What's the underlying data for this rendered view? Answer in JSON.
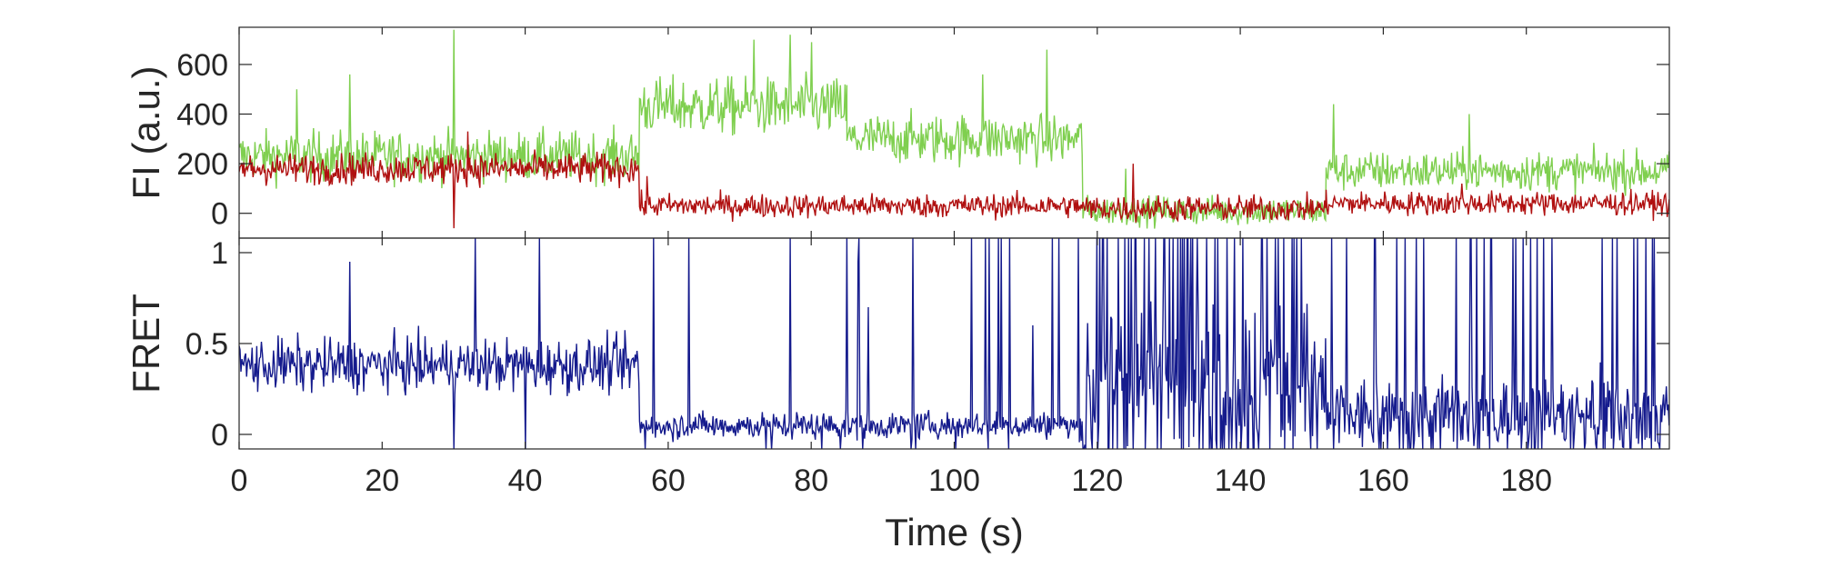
{
  "chart_data": [
    {
      "id": "fluorescence",
      "type": "line",
      "ylabel": "FI (a.u.)",
      "xlim": [
        0,
        200
      ],
      "ylim": [
        -100,
        750
      ],
      "yticks": [
        0,
        200,
        400,
        600
      ],
      "grid": false,
      "series": [
        {
          "color": "#7fcf4f",
          "segments": [
            {
              "x0": 0,
              "x1": 56,
              "mean": 230,
              "noise": 95,
              "spikes": [
                [
                  30,
                  740
                ],
                [
                  15.5,
                  560
                ],
                [
                  8,
                  500
                ]
              ]
            },
            {
              "x0": 56,
              "x1": 85,
              "mean": 430,
              "noise": 110,
              "spikes": [
                [
                  77,
                  720
                ],
                [
                  72,
                  700
                ],
                [
                  80,
                  690
                ]
              ]
            },
            {
              "x0": 85,
              "x1": 118,
              "mean": 300,
              "noise": 95,
              "spikes": [
                [
                  113,
                  660
                ],
                [
                  104,
                  560
                ]
              ]
            },
            {
              "x0": 118,
              "x1": 152,
              "mean": 10,
              "noise": 55,
              "spikes": [
                [
                  124,
                  180
                ]
              ]
            },
            {
              "x0": 152,
              "x1": 200,
              "mean": 170,
              "noise": 75,
              "spikes": [
                [
                  153,
                  440
                ],
                [
                  172,
                  400
                ]
              ]
            }
          ]
        },
        {
          "color": "#b01010",
          "segments": [
            {
              "x0": 0,
              "x1": 56,
              "mean": 180,
              "noise": 60,
              "spikes": [
                [
                  30,
                  -60
                ],
                [
                  32,
                  330
                ]
              ]
            },
            {
              "x0": 56,
              "x1": 118,
              "mean": 30,
              "noise": 45,
              "spikes": [
                [
                  57,
                  150
                ]
              ]
            },
            {
              "x0": 118,
              "x1": 152,
              "mean": 20,
              "noise": 50,
              "spikes": [
                [
                  125,
                  200
                ]
              ]
            },
            {
              "x0": 152,
              "x1": 200,
              "mean": 40,
              "noise": 45,
              "spikes": [
                [
                  171,
                  120
                ]
              ]
            }
          ]
        }
      ]
    },
    {
      "id": "fret",
      "type": "line",
      "ylabel": "FRET",
      "xlabel": "Time (s)",
      "xlim": [
        0,
        200
      ],
      "ylim": [
        -0.08,
        1.08
      ],
      "yticks": [
        0,
        0.5,
        1
      ],
      "xticks": [
        0,
        20,
        40,
        60,
        80,
        100,
        120,
        140,
        160,
        180
      ],
      "grid": false,
      "series": [
        {
          "color": "#151b8d",
          "segments": [
            {
              "x0": 0,
              "x1": 56,
              "mean": 0.38,
              "noise": 0.14,
              "spikes": [
                [
                  15.5,
                  0.95
                ],
                [
                  33,
                  1.08
                ],
                [
                  42,
                  1.08
                ],
                [
                  30,
                  -0.08
                ],
                [
                  40,
                  -0.08
                ]
              ],
              "clipChance": 0
            },
            {
              "x0": 56,
              "x1": 118,
              "mean": 0.05,
              "noise": 0.07,
              "spikes": [
                [
                  85,
                  1.08
                ],
                [
                  86.5,
                  0.95
                ],
                [
                  88,
                  0.7
                ],
                [
                  111,
                  0.6
                ]
              ],
              "clipChance": 0.05
            },
            {
              "x0": 118,
              "x1": 152,
              "mean": 0.3,
              "noise": 0.4,
              "spikes": [],
              "clipChance": 0.25
            },
            {
              "x0": 152,
              "x1": 200,
              "mean": 0.1,
              "noise": 0.2,
              "spikes": [
                [
                  192,
                  1.08
                ],
                [
                  195,
                  1.08
                ]
              ],
              "clipChance": 0.1
            }
          ]
        }
      ]
    }
  ]
}
